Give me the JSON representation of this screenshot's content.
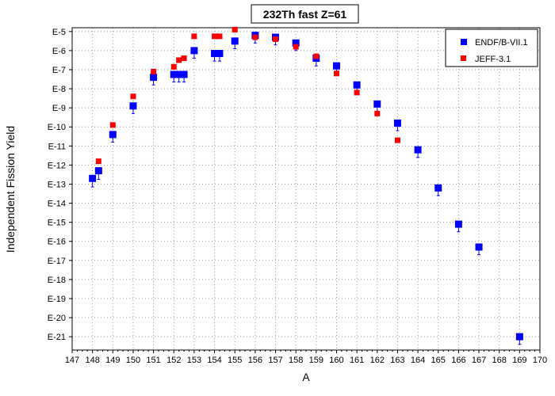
{
  "chart_data": {
    "type": "scatter",
    "title": "232Th fast Z=61",
    "xlabel": "A",
    "ylabel": "Independent Fission Yield",
    "xlim": [
      147,
      170
    ],
    "ylim_exponent": [
      -21.7,
      -4.8
    ],
    "yscale": "log",
    "grid": true,
    "legend_position": "top-right",
    "x_ticks": [
      147,
      148,
      149,
      150,
      151,
      152,
      153,
      154,
      155,
      156,
      157,
      158,
      159,
      160,
      161,
      162,
      163,
      164,
      165,
      166,
      167,
      168,
      169,
      170
    ],
    "y_ticks": [
      "E-5",
      "E-6",
      "E-7",
      "E-8",
      "E-9",
      "E-10",
      "E-11",
      "E-12",
      "E-13",
      "E-14",
      "E-15",
      "E-16",
      "E-17",
      "E-18",
      "E-19",
      "E-20",
      "E-21"
    ],
    "y_tick_exponents": [
      -5,
      -6,
      -7,
      -8,
      -9,
      -10,
      -11,
      -12,
      -13,
      -14,
      -15,
      -16,
      -17,
      -18,
      -19,
      -20,
      -21
    ],
    "series": [
      {
        "name": "ENDF/B-VII.1",
        "color": "#0000ff",
        "marker": "square",
        "error_bars": true,
        "points": [
          {
            "x": 148.0,
            "exp": -12.7,
            "err": 0.45
          },
          {
            "x": 148.3,
            "exp": -12.3,
            "err": 0.45
          },
          {
            "x": 149.0,
            "exp": -10.4,
            "err": 0.4
          },
          {
            "x": 150.0,
            "exp": -8.9,
            "err": 0.4
          },
          {
            "x": 151.0,
            "exp": -7.4,
            "err": 0.4
          },
          {
            "x": 152.0,
            "exp": -7.25,
            "err": 0.4
          },
          {
            "x": 152.25,
            "exp": -7.25,
            "err": 0.4
          },
          {
            "x": 152.5,
            "exp": -7.25,
            "err": 0.4
          },
          {
            "x": 153.0,
            "exp": -6.0,
            "err": 0.4
          },
          {
            "x": 154.0,
            "exp": -6.15,
            "err": 0.4
          },
          {
            "x": 154.25,
            "exp": -6.15,
            "err": 0.4
          },
          {
            "x": 155.0,
            "exp": -5.5,
            "err": 0.4
          },
          {
            "x": 156.0,
            "exp": -5.2,
            "err": 0.4
          },
          {
            "x": 157.0,
            "exp": -5.3,
            "err": 0.4
          },
          {
            "x": 158.0,
            "exp": -5.6,
            "err": 0.4
          },
          {
            "x": 159.0,
            "exp": -6.4,
            "err": 0.4
          },
          {
            "x": 160.0,
            "exp": -6.8,
            "err": 0.4
          },
          {
            "x": 161.0,
            "exp": -7.8,
            "err": 0.4
          },
          {
            "x": 162.0,
            "exp": -8.8,
            "err": 0.4
          },
          {
            "x": 163.0,
            "exp": -9.8,
            "err": 0.4
          },
          {
            "x": 164.0,
            "exp": -11.2,
            "err": 0.4
          },
          {
            "x": 165.0,
            "exp": -13.2,
            "err": 0.4
          },
          {
            "x": 166.0,
            "exp": -15.1,
            "err": 0.4
          },
          {
            "x": 167.0,
            "exp": -16.3,
            "err": 0.4
          },
          {
            "x": 169.0,
            "exp": -21.0,
            "err": 0.4
          }
        ]
      },
      {
        "name": "JEFF-3.1",
        "color": "#ff0000",
        "marker": "square",
        "error_bars": false,
        "points": [
          {
            "x": 148.3,
            "exp": -11.8
          },
          {
            "x": 149.0,
            "exp": -9.9
          },
          {
            "x": 150.0,
            "exp": -8.4
          },
          {
            "x": 151.0,
            "exp": -7.1
          },
          {
            "x": 152.0,
            "exp": -6.85
          },
          {
            "x": 152.25,
            "exp": -6.5
          },
          {
            "x": 152.5,
            "exp": -6.4
          },
          {
            "x": 153.0,
            "exp": -5.25
          },
          {
            "x": 154.0,
            "exp": -5.25
          },
          {
            "x": 154.25,
            "exp": -5.25
          },
          {
            "x": 155.0,
            "exp": -4.9
          },
          {
            "x": 156.0,
            "exp": -5.3
          },
          {
            "x": 157.0,
            "exp": -5.4
          },
          {
            "x": 158.0,
            "exp": -5.8
          },
          {
            "x": 159.0,
            "exp": -6.3
          },
          {
            "x": 160.0,
            "exp": -7.2
          },
          {
            "x": 161.0,
            "exp": -8.2
          },
          {
            "x": 162.0,
            "exp": -9.3
          },
          {
            "x": 163.0,
            "exp": -10.7
          }
        ]
      }
    ]
  }
}
